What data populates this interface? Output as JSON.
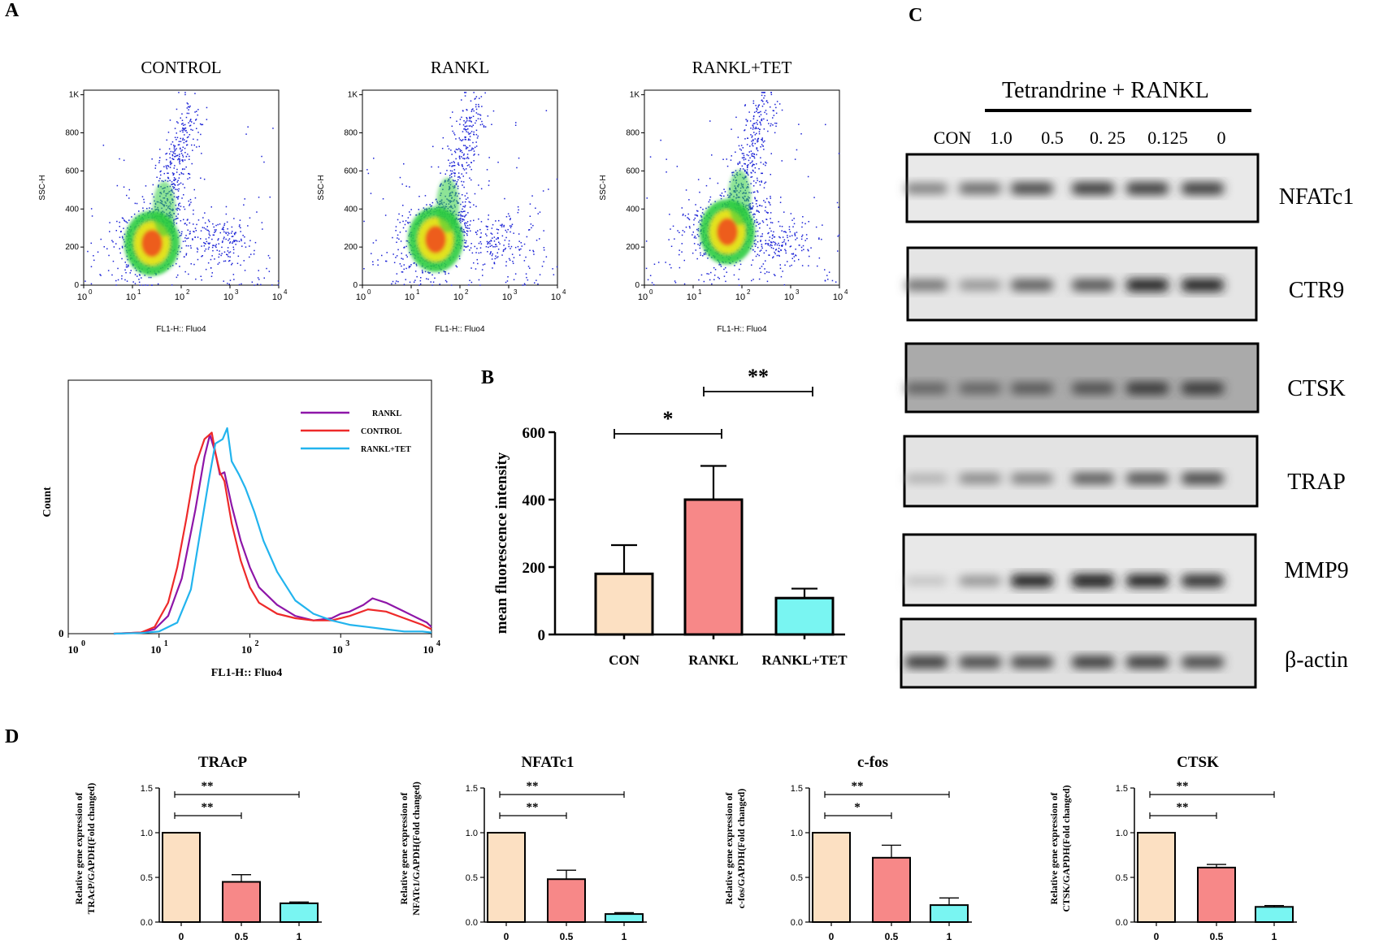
{
  "panels": {
    "A": "A",
    "B": "B",
    "C": "C",
    "D": "D"
  },
  "colors": {
    "con": "#FCE0C2",
    "rankl": "#F78888",
    "rankl_tet": "#79F5F2",
    "hist_rankl": "#8E16A8",
    "hist_control": "#EE2A2A",
    "hist_tet": "#22B4EE",
    "dot_blue": "#1B22D6"
  },
  "chart_data": [
    {
      "id": "scatter-plots",
      "type": "scatter",
      "panel": "A",
      "plots": [
        {
          "title": "CONTROL",
          "peak_x_log": 1.4,
          "peak_y": 220
        },
        {
          "title": "RANKL",
          "peak_x_log": 1.5,
          "peak_y": 240
        },
        {
          "title": "RANKL+TET",
          "peak_x_log": 1.7,
          "peak_y": 280
        }
      ],
      "xlabel": "FL1-H:: Fluo4",
      "ylabel": "SSC-H",
      "x_ticks": [
        "10",
        "10",
        "10",
        "10",
        "10"
      ],
      "x_tick_exponents": [
        "0",
        "1",
        "2",
        "3",
        "4"
      ],
      "y_ticks": [
        "0",
        "200",
        "400",
        "600",
        "800",
        "1K"
      ],
      "y_tick_values": [
        0,
        200,
        400,
        600,
        800,
        1000
      ],
      "xlim_log": [
        0,
        4
      ],
      "ylim": [
        0,
        1024
      ]
    },
    {
      "id": "histogram",
      "type": "line",
      "panel": "A",
      "xlabel": "FL1-H:: Fluo4",
      "ylabel": "Count",
      "y_tick": "0",
      "x_ticks": [
        "10",
        "10",
        "10",
        "10",
        "10"
      ],
      "x_tick_exponents": [
        "0",
        "1",
        "2",
        "3",
        "4"
      ],
      "xlim_log": [
        0,
        4
      ],
      "ylim": [
        0,
        100
      ],
      "series": [
        {
          "name": "RANKL",
          "x": [
            0.5,
            0.8,
            0.95,
            1.1,
            1.25,
            1.4,
            1.5,
            1.56,
            1.62,
            1.67,
            1.72,
            1.8,
            1.9,
            2.0,
            2.1,
            2.3,
            2.5,
            2.7,
            2.9,
            3.0,
            3.1,
            3.25,
            3.35,
            3.5,
            3.7,
            3.85,
            3.95,
            4.0
          ],
          "y": [
            0,
            0.5,
            2,
            8,
            25,
            56,
            80,
            90,
            82,
            72,
            73,
            58,
            42,
            30,
            21,
            13,
            8,
            6,
            7,
            9,
            10,
            13,
            16,
            14,
            10,
            7,
            5,
            3
          ]
        },
        {
          "name": "CONTROL",
          "x": [
            0.5,
            0.8,
            0.95,
            1.1,
            1.2,
            1.3,
            1.4,
            1.5,
            1.58,
            1.62,
            1.67,
            1.72,
            1.8,
            1.9,
            2.0,
            2.1,
            2.3,
            2.5,
            2.7,
            2.9,
            3.1,
            3.3,
            3.5,
            3.7,
            3.9,
            4.0
          ],
          "y": [
            0,
            0.5,
            3,
            14,
            30,
            52,
            76,
            88,
            91,
            82,
            73,
            69,
            50,
            33,
            21,
            14,
            9,
            7,
            6,
            6,
            8,
            11,
            10,
            7,
            4,
            2
          ]
        },
        {
          "name": "RANKL+TET",
          "x": [
            0.5,
            0.8,
            1.0,
            1.2,
            1.35,
            1.45,
            1.55,
            1.62,
            1.7,
            1.75,
            1.8,
            1.88,
            1.95,
            2.05,
            2.15,
            2.3,
            2.5,
            2.7,
            2.9,
            3.1,
            3.3,
            3.5,
            3.7,
            3.9,
            4.0
          ],
          "y": [
            0,
            0.3,
            1,
            5,
            20,
            45,
            70,
            86,
            88,
            93,
            78,
            72,
            66,
            55,
            42,
            28,
            15,
            9,
            6,
            4,
            3,
            2,
            1,
            1,
            0.5
          ]
        }
      ],
      "legend": [
        "RANKL",
        "CONTROL",
        "RANKL+TET"
      ],
      "legend_position": "top-right"
    },
    {
      "id": "mfi-bar",
      "type": "bar",
      "panel": "B",
      "categories": [
        "CON",
        "RANKL",
        "RANKL+TET"
      ],
      "values": [
        180,
        400,
        108
      ],
      "errors": [
        85,
        100,
        28
      ],
      "ylabel": "mean fluorescence intensity",
      "y_ticks": [
        "0",
        "200",
        "400",
        "600"
      ],
      "y_tick_values": [
        0,
        200,
        400,
        600
      ],
      "ylim": [
        0,
        600
      ],
      "significance": [
        {
          "from": 0,
          "to": 1,
          "label": "*"
        },
        {
          "from": 1,
          "to": 2,
          "label": "**"
        }
      ]
    },
    {
      "id": "qpcr-bars",
      "type": "bar",
      "panel": "D",
      "categories": [
        "0",
        "0.5",
        "1"
      ],
      "y_ticks": [
        "0.0",
        "0.5",
        "1.0",
        "1.5"
      ],
      "y_tick_values": [
        0,
        0.5,
        1.0,
        1.5
      ],
      "ylim": [
        0,
        1.5
      ],
      "charts": [
        {
          "title": "TRAcP",
          "ylabel_line1": "Relative gene expression of",
          "ylabel_line2": "TRAcP/GAPDH(Fold changed)",
          "values": [
            1.0,
            0.45,
            0.21
          ],
          "errors": [
            0,
            0.08,
            0.015
          ],
          "significance": [
            {
              "from": 0,
              "to": 1,
              "label": "**"
            },
            {
              "from": 0,
              "to": 2,
              "label": "**"
            }
          ]
        },
        {
          "title": "NFATc1",
          "ylabel_line1": "Relative gene expression of",
          "ylabel_line2": "NFATc1/GAPDH(Fold changed)",
          "values": [
            1.0,
            0.48,
            0.09
          ],
          "errors": [
            0,
            0.1,
            0.015
          ],
          "significance": [
            {
              "from": 0,
              "to": 1,
              "label": "**"
            },
            {
              "from": 0,
              "to": 2,
              "label": "**"
            }
          ]
        },
        {
          "title": "c-fos",
          "ylabel_line1": "Relative gene expression of",
          "ylabel_line2": "c-fos/GAPDH(Fold changed)",
          "values": [
            1.0,
            0.72,
            0.19
          ],
          "errors": [
            0,
            0.14,
            0.08
          ],
          "significance": [
            {
              "from": 0,
              "to": 1,
              "label": "*"
            },
            {
              "from": 0,
              "to": 2,
              "label": "**"
            }
          ]
        },
        {
          "title": "CTSK",
          "ylabel_line1": "Relative gene expression of",
          "ylabel_line2": "CTSK/GAPDH(Fold changed)",
          "values": [
            1.0,
            0.61,
            0.17
          ],
          "errors": [
            0,
            0.035,
            0.015
          ],
          "significance": [
            {
              "from": 0,
              "to": 1,
              "label": "**"
            },
            {
              "from": 0,
              "to": 2,
              "label": "**"
            }
          ]
        }
      ]
    },
    {
      "id": "western-blot",
      "type": "table",
      "panel": "C",
      "treatment_label": "Tetrandrine  + RANKL",
      "lanes": [
        "CON",
        "1.0",
        "0.5",
        "0. 25",
        "0.125",
        "0"
      ],
      "bands": [
        {
          "name": "NFATc1",
          "intensity": [
            0.55,
            0.65,
            0.8,
            0.85,
            0.85,
            0.85
          ]
        },
        {
          "name": "CTR9",
          "intensity": [
            0.6,
            0.45,
            0.7,
            0.75,
            0.95,
            0.95
          ]
        },
        {
          "name": "CTSK",
          "intensity": [
            0.65,
            0.65,
            0.7,
            0.75,
            0.85,
            0.85
          ]
        },
        {
          "name": "TRAP",
          "intensity": [
            0.3,
            0.5,
            0.55,
            0.7,
            0.75,
            0.8
          ]
        },
        {
          "name": "MMP9",
          "intensity": [
            0.2,
            0.45,
            0.95,
            1.0,
            0.95,
            0.9
          ]
        },
        {
          "name": "β-actin",
          "intensity": [
            0.85,
            0.8,
            0.8,
            0.85,
            0.85,
            0.8
          ]
        }
      ]
    }
  ]
}
